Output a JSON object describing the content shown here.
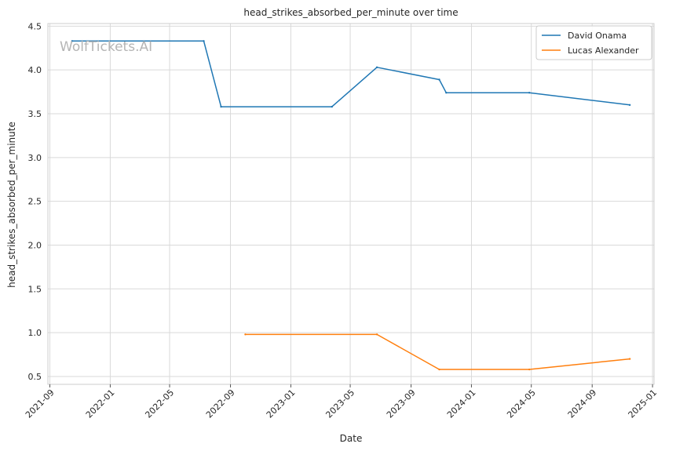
{
  "chart_data": {
    "type": "line",
    "title": "head_strikes_absorbed_per_minute over time",
    "xlabel": "Date",
    "ylabel": "head_strikes_absorbed_per_minute",
    "x_ticks": [
      "2021-09-01",
      "2022-01-01",
      "2022-05-01",
      "2022-09-01",
      "2023-01-01",
      "2023-05-01",
      "2023-09-01",
      "2024-01-01",
      "2024-05-01",
      "2024-09-01",
      "2025-01-01"
    ],
    "y_ticks": [
      0.5,
      1.0,
      1.5,
      2.0,
      2.5,
      3.0,
      3.5,
      4.0,
      4.5
    ],
    "y_tick_labels": [
      "0.5",
      "1.0",
      "1.5",
      "2.0",
      "2.5",
      "3.0",
      "3.5",
      "4.0",
      "4.5"
    ],
    "xlim": [
      "2021-08-28",
      "2025-01-04"
    ],
    "ylim": [
      0.41,
      4.53
    ],
    "grid": true,
    "legend_position": "top-right",
    "watermark": "WolfTickets.AI",
    "series": [
      {
        "name": "David Onama",
        "color": "#1f77b4",
        "points": [
          {
            "x": "2021-10-16",
            "y": 4.33
          },
          {
            "x": "2022-07-09",
            "y": 4.33
          },
          {
            "x": "2022-08-13",
            "y": 3.58
          },
          {
            "x": "2023-03-25",
            "y": 3.58
          },
          {
            "x": "2023-06-24",
            "y": 4.03
          },
          {
            "x": "2023-10-28",
            "y": 3.89
          },
          {
            "x": "2023-11-11",
            "y": 3.74
          },
          {
            "x": "2024-04-27",
            "y": 3.74
          },
          {
            "x": "2024-11-16",
            "y": 3.6
          }
        ]
      },
      {
        "name": "Lucas Alexander",
        "color": "#ff7f0e",
        "points": [
          {
            "x": "2022-10-01",
            "y": 0.98
          },
          {
            "x": "2023-06-24",
            "y": 0.98
          },
          {
            "x": "2023-10-28",
            "y": 0.58
          },
          {
            "x": "2024-04-27",
            "y": 0.58
          },
          {
            "x": "2024-11-16",
            "y": 0.7
          }
        ]
      }
    ]
  }
}
